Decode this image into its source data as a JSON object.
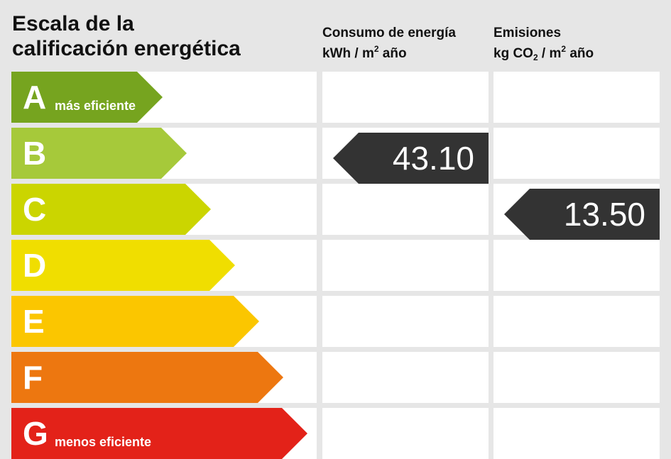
{
  "header": {
    "title_line1": "Escala de la",
    "title_line2": "calificación energética",
    "consumo_title": "Consumo de energía",
    "consumo_unit_pre": "kWh / m",
    "consumo_unit_sup": "2",
    "consumo_unit_post": " año",
    "emisiones_title": "Emisiones",
    "emisiones_unit_pre": "kg CO",
    "emisiones_unit_sub": "2",
    "emisiones_unit_mid": " / m",
    "emisiones_unit_sup": "2",
    "emisiones_unit_post": " año"
  },
  "grades": [
    {
      "letter": "A",
      "label": "más eficiente",
      "color": "#76a41f"
    },
    {
      "letter": "B",
      "label": "",
      "color": "#a6c93a"
    },
    {
      "letter": "C",
      "label": "",
      "color": "#cbd500"
    },
    {
      "letter": "D",
      "label": "",
      "color": "#f0de00"
    },
    {
      "letter": "E",
      "label": "",
      "color": "#fbc600"
    },
    {
      "letter": "F",
      "label": "",
      "color": "#ed7710"
    },
    {
      "letter": "G",
      "label": "menos eficiente",
      "color": "#e32219"
    }
  ],
  "chart_data": {
    "type": "table",
    "title": "Escala de la calificación energética",
    "columns": [
      "Consumo de energía (kWh / m² año)",
      "Emisiones (kg CO₂ / m² año)"
    ],
    "rows": [
      "A",
      "B",
      "C",
      "D",
      "E",
      "F",
      "G"
    ],
    "consumo": {
      "grade": "B",
      "value": "43.10"
    },
    "emisiones": {
      "grade": "C",
      "value": "13.50"
    }
  }
}
